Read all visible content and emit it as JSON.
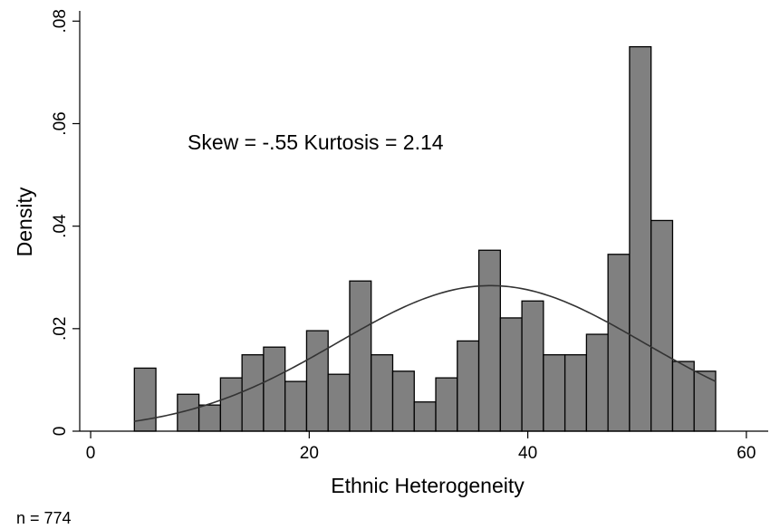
{
  "chart_data": {
    "type": "bar",
    "xlabel": "Ethnic Heterogeneity",
    "ylabel": "Density",
    "xlim": [
      -1,
      62
    ],
    "ylim": [
      0,
      0.082
    ],
    "x_ticks": [
      0,
      20,
      40,
      60
    ],
    "x_tick_labels": [
      "0",
      "20",
      "40",
      "60"
    ],
    "y_ticks": [
      0,
      0.02,
      0.04,
      0.06,
      0.08
    ],
    "y_tick_labels": [
      "0",
      ".02",
      ".04",
      ".06",
      ".08"
    ],
    "bin_edges": [
      4.0,
      5.97,
      7.94,
      9.91,
      11.88,
      13.85,
      15.82,
      17.79,
      19.76,
      21.73,
      23.7,
      25.67,
      27.64,
      29.61,
      31.58,
      33.55,
      35.52,
      37.49,
      39.46,
      41.43,
      43.4,
      45.37,
      47.34,
      49.31,
      51.28,
      53.25,
      55.22,
      57.19
    ],
    "values": [
      0.0123,
      0.0,
      0.0072,
      0.0051,
      0.0104,
      0.0149,
      0.0164,
      0.0097,
      0.0196,
      0.0111,
      0.0293,
      0.0149,
      0.0117,
      0.0057,
      0.0104,
      0.0176,
      0.0353,
      0.0221,
      0.0254,
      0.0149,
      0.0149,
      0.0189,
      0.0345,
      0.075,
      0.0411,
      0.0136,
      0.0117
    ],
    "normal_curve": {
      "mean": 36.6,
      "sd": 14.05,
      "x_range": [
        4.0,
        57.19
      ]
    },
    "annotation": "Skew = -.55  Kurtosis = 2.14",
    "grid": false,
    "colors": {
      "bar_fill": "#808080",
      "bar_stroke": "#000000",
      "curve": "#333333",
      "axis": "#000000"
    }
  },
  "note": "n = 774"
}
